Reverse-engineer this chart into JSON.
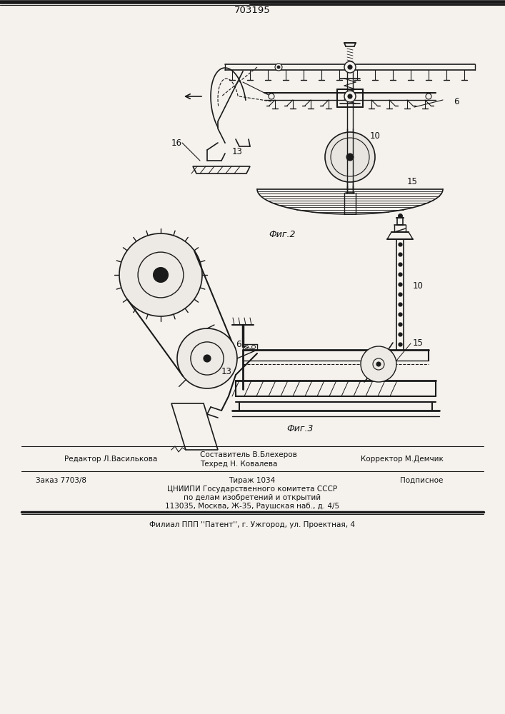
{
  "patent_number": "703195",
  "fig2_label": "Фиг.2",
  "fig3_label": "Фиг.3",
  "editor_line": "Редактор Л.Василькова",
  "composer_line": "Составитель В.Блехеров",
  "techred_line": "Техред Н. Ковалева",
  "corrector_line": "Корректор М.Демчик",
  "order_line": "Заказ 7703/8",
  "tirazh_line": "Тираж 1034",
  "podpisnoe_line": "Подписное",
  "cnipi_line1": "ЦНИИПИ Государственного комитета СССР",
  "cnipi_line2": "по делам изобретений и открытий",
  "cnipi_line3": "113035, Москва, Ж-35, Раушская наб., д. 4/5",
  "filial_line": "Филиал ППП ''Патент'', г. Ужгород, ул. Проектная, 4",
  "bg_color": "#f5f2ee",
  "line_color": "#1a1a1a",
  "text_color": "#111111"
}
